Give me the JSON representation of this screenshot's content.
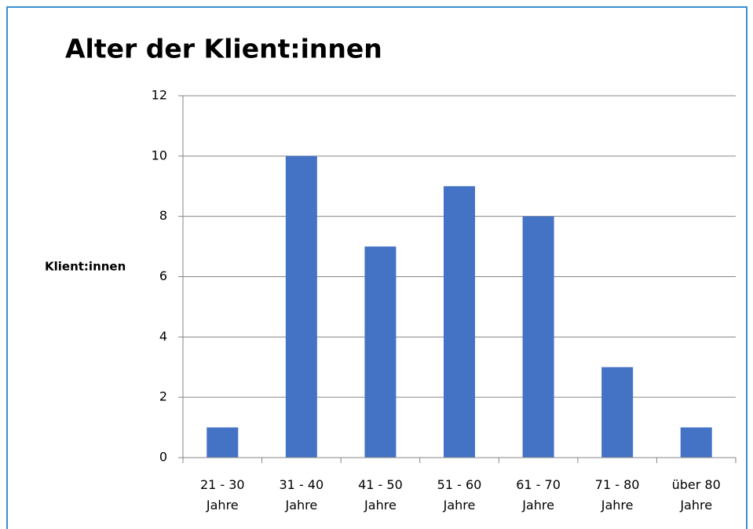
{
  "chart_data": {
    "type": "bar",
    "title": "Alter der Klient:innen",
    "y_label": "Klient:innen",
    "categories": [
      "21 - 30 Jahre",
      "31 - 40 Jahre",
      "41 - 50 Jahre",
      "51 - 60 Jahre",
      "61 - 70 Jahre",
      "71 - 80 Jahre",
      "über 80 Jahre"
    ],
    "values": [
      1,
      10,
      7,
      9,
      8,
      3,
      1
    ],
    "color": "#4472c4",
    "ylim": [
      0,
      12
    ],
    "yticks": [
      0,
      2,
      4,
      6,
      8,
      10,
      12
    ],
    "grid": true
  }
}
